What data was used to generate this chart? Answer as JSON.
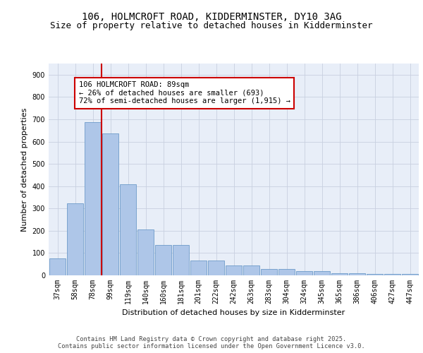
{
  "title1": "106, HOLMCROFT ROAD, KIDDERMINSTER, DY10 3AG",
  "title2": "Size of property relative to detached houses in Kidderminster",
  "xlabel": "Distribution of detached houses by size in Kidderminster",
  "ylabel": "Number of detached properties",
  "categories": [
    "37sqm",
    "58sqm",
    "78sqm",
    "99sqm",
    "119sqm",
    "140sqm",
    "160sqm",
    "181sqm",
    "201sqm",
    "222sqm",
    "242sqm",
    "263sqm",
    "283sqm",
    "304sqm",
    "324sqm",
    "345sqm",
    "365sqm",
    "386sqm",
    "406sqm",
    "427sqm",
    "447sqm"
  ],
  "values": [
    75,
    323,
    688,
    638,
    410,
    207,
    137,
    137,
    68,
    68,
    45,
    45,
    30,
    30,
    20,
    18,
    10,
    10,
    5,
    5,
    5
  ],
  "bar_color": "#aec6e8",
  "bar_edge_color": "#5a8fc2",
  "background_color": "#e8eef8",
  "grid_color": "#c8d0e0",
  "vline_color": "#cc0000",
  "annotation_text": "106 HOLMCROFT ROAD: 89sqm\n← 26% of detached houses are smaller (693)\n72% of semi-detached houses are larger (1,915) →",
  "annotation_box_color": "#ffffff",
  "annotation_edge_color": "#cc0000",
  "annotation_fontsize": 7.5,
  "ylim": [
    0,
    950
  ],
  "yticks": [
    0,
    100,
    200,
    300,
    400,
    500,
    600,
    700,
    800,
    900
  ],
  "footer1": "Contains HM Land Registry data © Crown copyright and database right 2025.",
  "footer2": "Contains public sector information licensed under the Open Government Licence v3.0.",
  "title_fontsize": 10,
  "subtitle_fontsize": 9,
  "axis_label_fontsize": 8,
  "tick_fontsize": 7,
  "ylabel_fontsize": 8
}
